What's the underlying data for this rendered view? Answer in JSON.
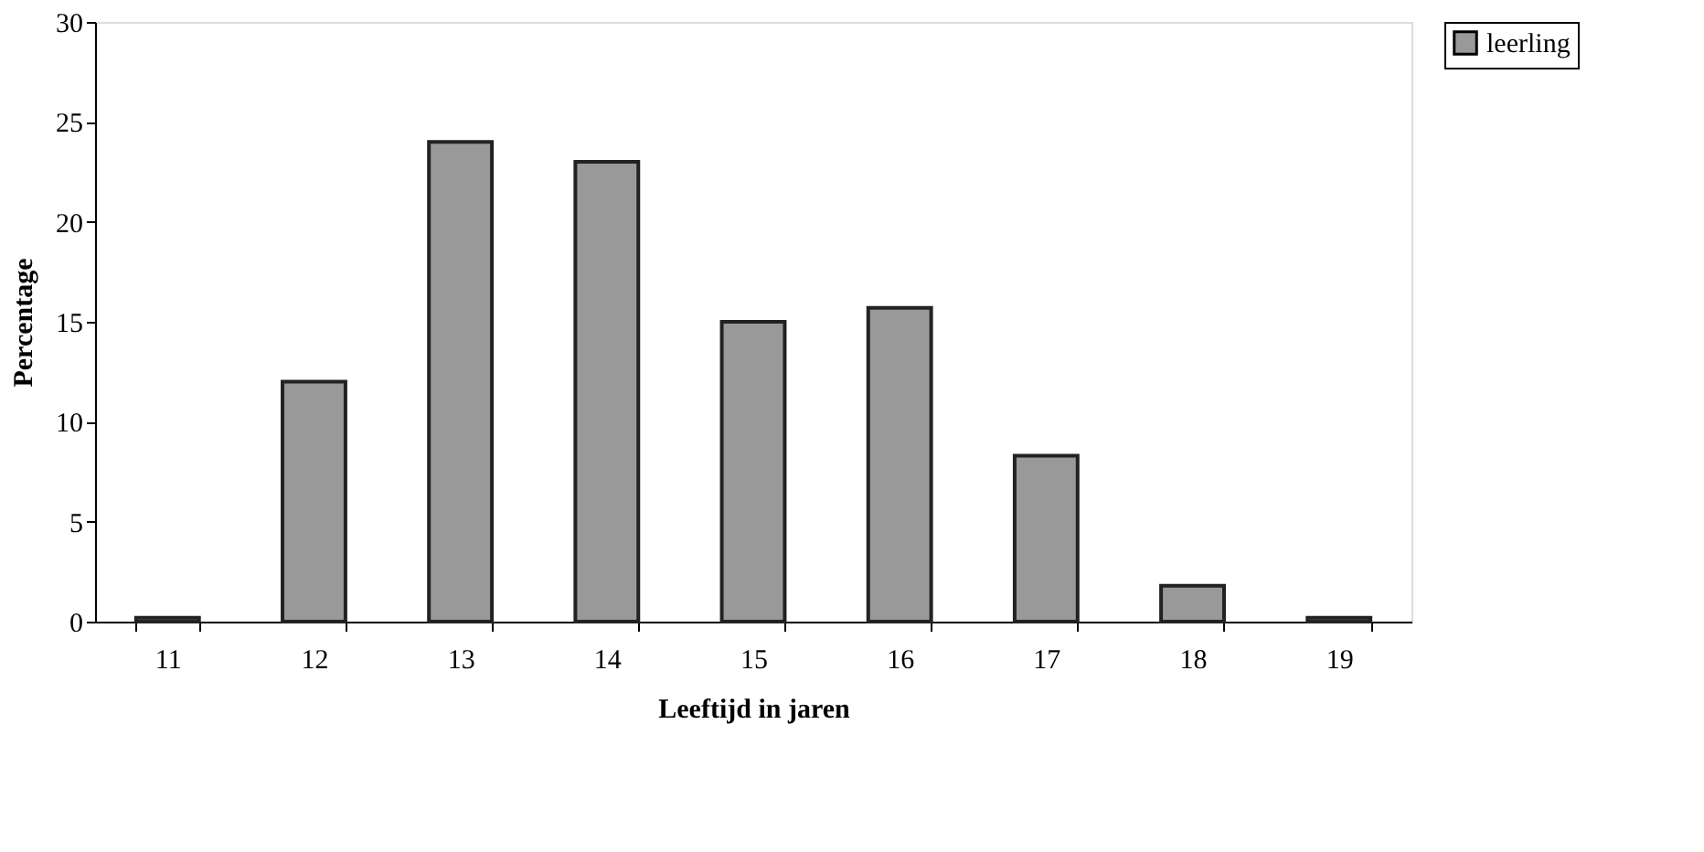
{
  "chart_data": {
    "type": "bar",
    "xlabel": "Leeftijd in jaren",
    "ylabel": "Percentage",
    "categories": [
      "11",
      "12",
      "13",
      "14",
      "15",
      "16",
      "17",
      "18",
      "19"
    ],
    "series": [
      {
        "name": "leerling",
        "color": "#999999",
        "values": [
          0.2,
          12,
          24,
          23,
          15,
          15.7,
          8.3,
          1.8,
          0.2
        ]
      }
    ],
    "ylim": [
      0,
      30
    ],
    "yticks": [
      0,
      5,
      10,
      15,
      20,
      25,
      30
    ],
    "grid": false,
    "legend": "right"
  }
}
